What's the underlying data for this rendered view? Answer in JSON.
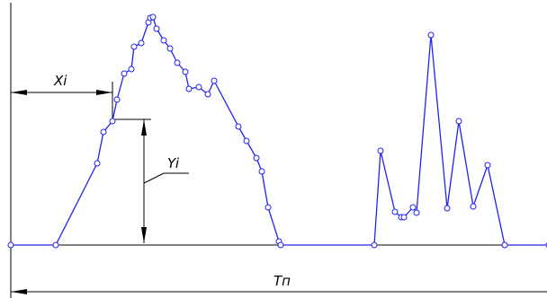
{
  "labels": {
    "x_dimension": "Xi",
    "y_dimension": "Yi",
    "period": "Tп"
  },
  "colors": {
    "profile_line": "#2222ee",
    "profile_points": "#2222ee",
    "dimension_lines": "#000000",
    "background": "#ffffff"
  },
  "chart_data": {
    "type": "line",
    "title": "",
    "xlabel": "",
    "ylabel": "",
    "series": [
      {
        "values": [
          [
            0,
            0
          ],
          [
            50,
            0
          ],
          [
            96,
            91
          ],
          [
            103,
            126
          ],
          [
            113,
            138
          ],
          [
            118,
            162
          ],
          [
            126,
            191
          ],
          [
            134,
            196
          ],
          [
            137,
            221
          ],
          [
            145,
            225
          ],
          [
            153,
            248
          ],
          [
            155,
            253
          ],
          [
            158,
            254
          ],
          [
            162,
            241
          ],
          [
            170,
            228
          ],
          [
            177,
            219
          ],
          [
            185,
            203
          ],
          [
            194,
            193
          ],
          [
            198,
            174
          ],
          [
            209,
            176
          ],
          [
            219,
            168
          ],
          [
            226,
            183
          ],
          [
            253,
            132
          ],
          [
            262,
            116
          ],
          [
            273,
            97
          ],
          [
            279,
            82
          ],
          [
            286,
            42
          ],
          [
            298,
            4
          ],
          [
            300,
            0
          ],
          [
            404,
            0
          ],
          [
            411,
            105
          ],
          [
            427,
            37
          ],
          [
            434,
            31
          ],
          [
            437,
            31
          ],
          [
            447,
            42
          ],
          [
            451,
            36
          ],
          [
            467,
            234
          ],
          [
            485,
            41
          ],
          [
            498,
            138
          ],
          [
            514,
            43
          ],
          [
            530,
            89
          ],
          [
            549,
            0
          ],
          [
            598,
            0
          ]
        ]
      }
    ]
  }
}
